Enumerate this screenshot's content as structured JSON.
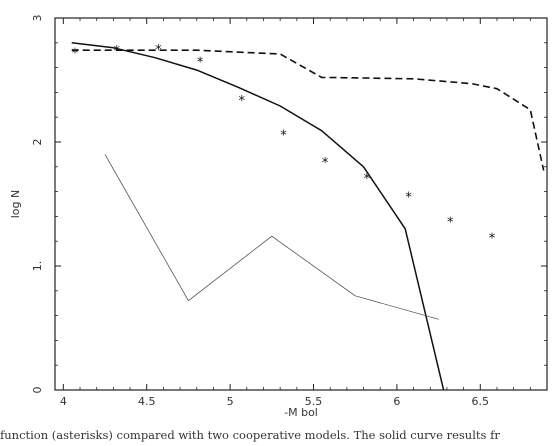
{
  "chart_data": {
    "type": "line",
    "title": "",
    "xlabel": "-M bol",
    "ylabel": "log N",
    "xlim": [
      3.95,
      6.9
    ],
    "ylim": [
      0,
      3
    ],
    "xticks": [
      4,
      4.5,
      5,
      5.5,
      6,
      6.5
    ],
    "xtick_labels": [
      "4",
      "4.5",
      "5",
      "5.5",
      "6",
      "6.5"
    ],
    "yticks": [
      0,
      1,
      2,
      3
    ],
    "ytick_labels": [
      "0",
      "1.",
      "2",
      "3"
    ],
    "grid": false,
    "series": [
      {
        "style": "dashed",
        "color": "#111111",
        "x": [
          4.05,
          4.3,
          4.8,
          5.3,
          5.55,
          5.6,
          6.1,
          6.45,
          6.6,
          6.8,
          6.88
        ],
        "y": [
          2.74,
          2.74,
          2.74,
          2.71,
          2.52,
          2.52,
          2.51,
          2.47,
          2.43,
          2.26,
          1.77
        ]
      },
      {
        "style": "solid-thick",
        "color": "#111111",
        "x": [
          4.05,
          4.3,
          4.55,
          4.8,
          5.05,
          5.3,
          5.55,
          5.8,
          6.05,
          6.28
        ],
        "y": [
          2.8,
          2.76,
          2.68,
          2.58,
          2.44,
          2.29,
          2.09,
          1.8,
          1.3,
          0
        ]
      },
      {
        "style": "solid-thin",
        "color": "#444444",
        "x": [
          4.25,
          4.75,
          5.25,
          5.75,
          6.25
        ],
        "y": [
          1.9,
          0.72,
          1.24,
          0.76,
          0.57
        ]
      }
    ],
    "points": {
      "marker": "*",
      "x": [
        4.07,
        4.32,
        4.57,
        4.82,
        5.07,
        5.32,
        5.57,
        5.82,
        6.07,
        6.32,
        6.57
      ],
      "y": [
        2.72,
        2.74,
        2.75,
        2.65,
        2.34,
        2.06,
        1.84,
        1.71,
        1.56,
        1.36,
        1.23
      ]
    }
  },
  "caption": "function (asterisks) compared with two cooperative models. The solid curve results fr"
}
